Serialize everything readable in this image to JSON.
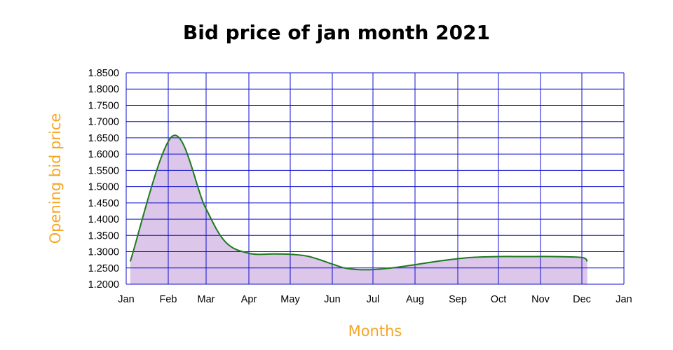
{
  "chart_data": {
    "type": "area",
    "title": "Bid price of jan month 2021",
    "xlabel": "Months",
    "ylabel": "Opening bid price",
    "x_ticks": [
      "Jan",
      "Feb",
      "Mar",
      "Apr",
      "May",
      "Jun",
      "Jul",
      "Aug",
      "Sep",
      "Oct",
      "Nov",
      "Dec",
      "Jan"
    ],
    "y_ticks": [
      "1.2000",
      "1.2500",
      "1.3000",
      "1.3500",
      "1.4000",
      "1.4500",
      "1.5000",
      "1.5500",
      "1.6000",
      "1.6500",
      "1.7000",
      "1.7500",
      "1.8000",
      "1.8500"
    ],
    "ylim": [
      1.2,
      1.85
    ],
    "grid": true,
    "x": [
      "2021-01-04",
      "2021-02-04",
      "2021-02-28",
      "2021-03-15",
      "2021-04-01",
      "2021-04-20",
      "2021-05-01",
      "2021-05-15",
      "2021-06-01",
      "2021-06-10",
      "2021-06-20",
      "2021-07-01",
      "2021-07-15",
      "2021-08-01",
      "2021-08-20",
      "2021-09-10",
      "2021-10-01",
      "2021-10-20",
      "2021-11-10",
      "2021-12-01",
      "2021-12-05"
    ],
    "series": [
      {
        "values": [
          1.27,
          1.655,
          1.44,
          1.33,
          1.295,
          1.293,
          1.292,
          1.285,
          1.262,
          1.25,
          1.245,
          1.245,
          1.25,
          1.26,
          1.272,
          1.282,
          1.285,
          1.285,
          1.285,
          1.282,
          1.27
        ]
      }
    ],
    "colors": {
      "line": "#1f7a1f",
      "fill": "#dcc6ea",
      "grid": "#1010cc",
      "axis_title": "#f5a623"
    }
  }
}
